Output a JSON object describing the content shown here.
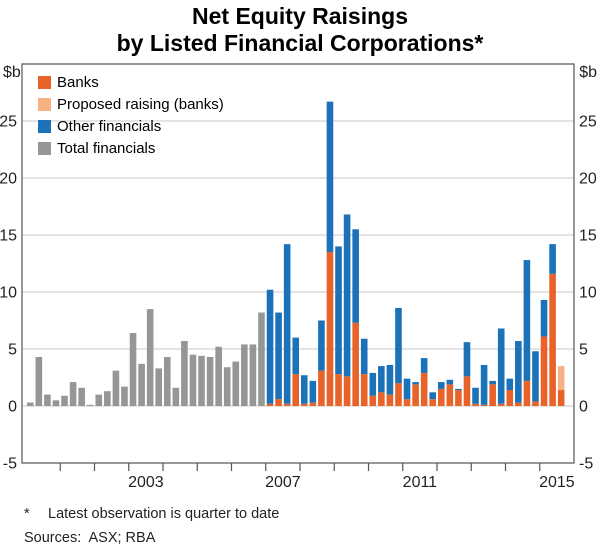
{
  "header": {
    "title_line1": "Net Equity Raisings",
    "title_line2": "by Listed Financial Corporations*"
  },
  "axes": {
    "unit_left": "$b",
    "unit_right": "$b",
    "year_labels": [
      "2003",
      "2007",
      "2011",
      "2015"
    ]
  },
  "legend": [
    {
      "key": "banks",
      "label": "Banks",
      "color": "#E8632A"
    },
    {
      "key": "proposed_banks",
      "label": "Proposed raising (banks)",
      "color": "#F8B184"
    },
    {
      "key": "other_financials",
      "label": "Other financials",
      "color": "#1C72B8"
    },
    {
      "key": "total_financials",
      "label": "Total financials",
      "color": "#969696"
    }
  ],
  "footnotes": {
    "marker": "*",
    "note": "Latest observation is quarter to date",
    "sources": "Sources:  ASX; RBA"
  },
  "chart_data": {
    "type": "bar",
    "stacked": true,
    "title": "Net Equity Raisings by Listed Financial Corporations*",
    "xlabel": "",
    "ylabel": "$b",
    "ylim": [
      -5,
      30
    ],
    "yticks": [
      -5,
      0,
      5,
      10,
      15,
      20,
      25
    ],
    "grid": true,
    "legend_position": "top-left",
    "x_domain_years": [
      2000,
      2016
    ],
    "year_tick_range": [
      2001,
      2015
    ],
    "stack_order": [
      "banks",
      "proposed_banks",
      "other_financials",
      "total_financials"
    ],
    "colors": {
      "banks": "#E8632A",
      "proposed_banks": "#F8B184",
      "other_financials": "#1C72B8",
      "total_financials": "#969696",
      "grid": "#C9C9C9",
      "axis": "#545456",
      "text": "#231F20"
    },
    "quarters": [
      {
        "q": "2000Q1",
        "total_financials": 0.3
      },
      {
        "q": "2000Q2",
        "total_financials": 4.3
      },
      {
        "q": "2000Q3",
        "total_financials": 1.0
      },
      {
        "q": "2000Q4",
        "total_financials": 0.5
      },
      {
        "q": "2001Q1",
        "total_financials": 0.9
      },
      {
        "q": "2001Q2",
        "total_financials": 2.1
      },
      {
        "q": "2001Q3",
        "total_financials": 1.6
      },
      {
        "q": "2001Q4",
        "total_financials": 0.1
      },
      {
        "q": "2002Q1",
        "total_financials": 1.0
      },
      {
        "q": "2002Q2",
        "total_financials": 1.3
      },
      {
        "q": "2002Q3",
        "total_financials": 3.1
      },
      {
        "q": "2002Q4",
        "total_financials": 1.7
      },
      {
        "q": "2003Q1",
        "total_financials": 6.4
      },
      {
        "q": "2003Q2",
        "total_financials": 3.7
      },
      {
        "q": "2003Q3",
        "total_financials": 8.5
      },
      {
        "q": "2003Q4",
        "total_financials": 3.3
      },
      {
        "q": "2004Q1",
        "total_financials": 4.3
      },
      {
        "q": "2004Q2",
        "total_financials": 1.6
      },
      {
        "q": "2004Q3",
        "total_financials": 5.7
      },
      {
        "q": "2004Q4",
        "total_financials": 4.5
      },
      {
        "q": "2005Q1",
        "total_financials": 4.4
      },
      {
        "q": "2005Q2",
        "total_financials": 4.3
      },
      {
        "q": "2005Q3",
        "total_financials": 5.2
      },
      {
        "q": "2005Q4",
        "total_financials": 3.4
      },
      {
        "q": "2006Q1",
        "total_financials": 3.9
      },
      {
        "q": "2006Q2",
        "total_financials": 5.4
      },
      {
        "q": "2006Q3",
        "total_financials": 5.4
      },
      {
        "q": "2006Q4",
        "total_financials": 8.2
      },
      {
        "q": "2007Q1",
        "banks": 0.2,
        "other_financials": 10.0
      },
      {
        "q": "2007Q2",
        "banks": 0.6,
        "other_financials": 7.6
      },
      {
        "q": "2007Q3",
        "banks": 0.2,
        "other_financials": 14.0
      },
      {
        "q": "2007Q4",
        "banks": 2.8,
        "other_financials": 3.2
      },
      {
        "q": "2008Q1",
        "banks": 0.2,
        "other_financials": 2.5
      },
      {
        "q": "2008Q2",
        "banks": 0.3,
        "other_financials": 1.9
      },
      {
        "q": "2008Q3",
        "banks": 3.1,
        "other_financials": 4.4
      },
      {
        "q": "2008Q4",
        "banks": 13.5,
        "other_financials": 13.2
      },
      {
        "q": "2009Q1",
        "banks": 2.8,
        "other_financials": 11.2
      },
      {
        "q": "2009Q2",
        "banks": 2.6,
        "other_financials": 14.2
      },
      {
        "q": "2009Q3",
        "banks": 7.3,
        "other_financials": 8.2
      },
      {
        "q": "2009Q4",
        "banks": 2.8,
        "other_financials": 3.1
      },
      {
        "q": "2010Q1",
        "banks": 0.9,
        "other_financials": 2.0
      },
      {
        "q": "2010Q2",
        "banks": 1.2,
        "other_financials": 2.3
      },
      {
        "q": "2010Q3",
        "banks": 1.0,
        "other_financials": 2.6
      },
      {
        "q": "2010Q4",
        "banks": 2.0,
        "other_financials": 6.6
      },
      {
        "q": "2011Q1",
        "banks": 0.6,
        "other_financials": 1.8
      },
      {
        "q": "2011Q2",
        "banks": 1.9,
        "other_financials": 0.2
      },
      {
        "q": "2011Q3",
        "banks": 2.9,
        "other_financials": 1.3
      },
      {
        "q": "2011Q4",
        "banks": 0.6,
        "other_financials": 0.6
      },
      {
        "q": "2012Q1",
        "banks": 1.5,
        "other_financials": 0.6
      },
      {
        "q": "2012Q2",
        "banks": 1.9,
        "other_financials": 0.4
      },
      {
        "q": "2012Q3",
        "banks": 1.4,
        "other_financials": 0.1
      },
      {
        "q": "2012Q4",
        "banks": 2.6,
        "other_financials": 3.0
      },
      {
        "q": "2013Q1",
        "banks": 0.2,
        "other_financials": 1.4
      },
      {
        "q": "2013Q2",
        "banks": 0.1,
        "other_financials": 3.5
      },
      {
        "q": "2013Q3",
        "banks": 1.9,
        "other_financials": 0.3
      },
      {
        "q": "2013Q4",
        "banks": 0.2,
        "other_financials": 6.6
      },
      {
        "q": "2014Q1",
        "banks": 1.4,
        "other_financials": 1.0
      },
      {
        "q": "2014Q2",
        "banks": 0.3,
        "other_financials": 5.4
      },
      {
        "q": "2014Q3",
        "banks": 2.2,
        "other_financials": 10.6
      },
      {
        "q": "2014Q4",
        "banks": 0.4,
        "other_financials": 4.4
      },
      {
        "q": "2015Q1",
        "banks": 6.1,
        "other_financials": 3.2
      },
      {
        "q": "2015Q2",
        "banks": 11.6,
        "other_financials": 2.6
      },
      {
        "q": "2015Q3",
        "banks": 1.4,
        "proposed_banks": 2.1
      }
    ]
  }
}
